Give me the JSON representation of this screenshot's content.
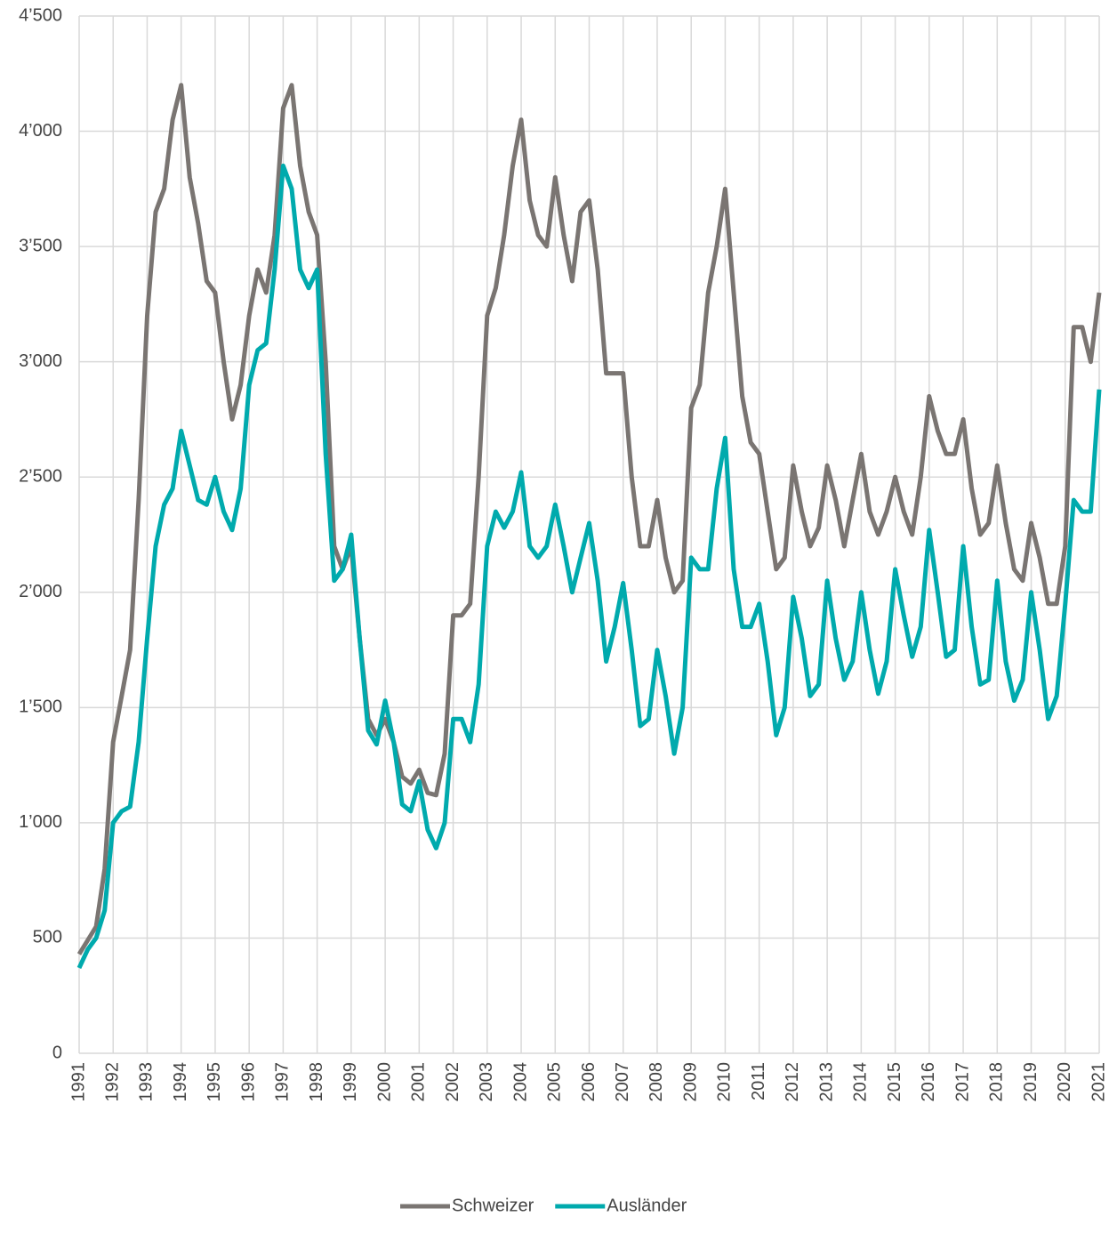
{
  "chart_data": {
    "type": "line",
    "x": [
      1991,
      1991.25,
      1991.5,
      1991.75,
      1992,
      1992.25,
      1992.5,
      1992.75,
      1993,
      1993.25,
      1993.5,
      1993.75,
      1994,
      1994.25,
      1994.5,
      1994.75,
      1995,
      1995.25,
      1995.5,
      1995.75,
      1996,
      1996.25,
      1996.5,
      1996.75,
      1997,
      1997.25,
      1997.5,
      1997.75,
      1998,
      1998.25,
      1998.5,
      1998.75,
      1999,
      1999.25,
      1999.5,
      1999.75,
      2000,
      2000.25,
      2000.5,
      2000.75,
      2001,
      2001.25,
      2001.5,
      2001.75,
      2002,
      2002.25,
      2002.5,
      2002.75,
      2003,
      2003.25,
      2003.5,
      2003.75,
      2004,
      2004.25,
      2004.5,
      2004.75,
      2005,
      2005.25,
      2005.5,
      2005.75,
      2006,
      2006.25,
      2006.5,
      2006.75,
      2007,
      2007.25,
      2007.5,
      2007.75,
      2008,
      2008.25,
      2008.5,
      2008.75,
      2009,
      2009.25,
      2009.5,
      2009.75,
      2010,
      2010.25,
      2010.5,
      2010.75,
      2011,
      2011.25,
      2011.5,
      2011.75,
      2012,
      2012.25,
      2012.5,
      2012.75,
      2013,
      2013.25,
      2013.5,
      2013.75,
      2014,
      2014.25,
      2014.5,
      2014.75,
      2015,
      2015.25,
      2015.5,
      2015.75,
      2016,
      2016.25,
      2016.5,
      2016.75,
      2017,
      2017.25,
      2017.5,
      2017.75,
      2018,
      2018.25,
      2018.5,
      2018.75,
      2019,
      2019.25,
      2019.5,
      2019.75,
      2020,
      2020.25,
      2020.5,
      2020.75,
      2021
    ],
    "series": [
      {
        "name": "Schweizer",
        "color": "#7a7572",
        "values": [
          430,
          490,
          550,
          800,
          1350,
          1550,
          1750,
          2400,
          3200,
          3650,
          3750,
          4050,
          4200,
          3800,
          3600,
          3350,
          3300,
          3000,
          2750,
          2900,
          3200,
          3400,
          3300,
          3550,
          4100,
          4200,
          3850,
          3650,
          3550,
          3000,
          2200,
          2100,
          2200,
          1800,
          1450,
          1380,
          1450,
          1350,
          1200,
          1170,
          1230,
          1130,
          1120,
          1300,
          1900,
          1900,
          1950,
          2500,
          3200,
          3320,
          3550,
          3850,
          4050,
          3700,
          3550,
          3500,
          3800,
          3550,
          3350,
          3650,
          3700,
          3400,
          2950,
          2950,
          2950,
          2500,
          2200,
          2200,
          2400,
          2150,
          2000,
          2050,
          2800,
          2900,
          3300,
          3500,
          3750,
          3300,
          2850,
          2650,
          2600,
          2350,
          2100,
          2150,
          2550,
          2350,
          2200,
          2280,
          2550,
          2400,
          2200,
          2400,
          2600,
          2350,
          2250,
          2350,
          2500,
          2350,
          2250,
          2500,
          2850,
          2700,
          2600,
          2600,
          2750,
          2450,
          2250,
          2300,
          2550,
          2300,
          2100,
          2050,
          2300,
          2150,
          1950,
          1950,
          2200,
          3150,
          3150,
          3000,
          3300
        ]
      },
      {
        "name": "Ausländer",
        "color": "#00aaad",
        "values": [
          370,
          450,
          500,
          620,
          1000,
          1050,
          1070,
          1350,
          1800,
          2200,
          2380,
          2450,
          2700,
          2550,
          2400,
          2380,
          2500,
          2350,
          2270,
          2450,
          2900,
          3050,
          3080,
          3400,
          3850,
          3750,
          3400,
          3320,
          3400,
          2600,
          2050,
          2100,
          2250,
          1800,
          1400,
          1340,
          1530,
          1350,
          1080,
          1050,
          1180,
          970,
          890,
          1000,
          1450,
          1450,
          1350,
          1600,
          2200,
          2350,
          2280,
          2350,
          2520,
          2200,
          2150,
          2200,
          2380,
          2200,
          2000,
          2150,
          2300,
          2050,
          1700,
          1850,
          2040,
          1750,
          1420,
          1450,
          1750,
          1550,
          1300,
          1500,
          2150,
          2100,
          2100,
          2450,
          2670,
          2100,
          1850,
          1850,
          1950,
          1700,
          1380,
          1500,
          1980,
          1800,
          1550,
          1600,
          2050,
          1800,
          1620,
          1700,
          2000,
          1750,
          1560,
          1700,
          2100,
          1900,
          1720,
          1850,
          2270,
          2000,
          1720,
          1750,
          2200,
          1850,
          1600,
          1620,
          2050,
          1700,
          1530,
          1620,
          2000,
          1750,
          1450,
          1550,
          1950,
          2400,
          2350,
          2350,
          2880
        ]
      }
    ],
    "xlim": [
      1991,
      2021
    ],
    "xticks": [
      1991,
      1992,
      1993,
      1994,
      1995,
      1996,
      1997,
      1998,
      1999,
      2000,
      2001,
      2002,
      2003,
      2004,
      2005,
      2006,
      2007,
      2008,
      2009,
      2010,
      2011,
      2012,
      2013,
      2014,
      2015,
      2016,
      2017,
      2018,
      2019,
      2020,
      2021
    ],
    "ylim": [
      0,
      4500
    ],
    "yticks": [
      0,
      500,
      {
        "value": 1000,
        "label": "1’000"
      },
      {
        "value": 1500,
        "label": "1’500"
      },
      {
        "value": 2000,
        "label": "2’000"
      },
      {
        "value": 2500,
        "label": "2’500"
      },
      {
        "value": 3000,
        "label": "3’000"
      },
      {
        "value": 3500,
        "label": "3’500"
      },
      {
        "value": 4000,
        "label": "4’000"
      },
      {
        "value": 4500,
        "label": "4’500"
      }
    ],
    "grid": true,
    "legend": "bottom"
  }
}
